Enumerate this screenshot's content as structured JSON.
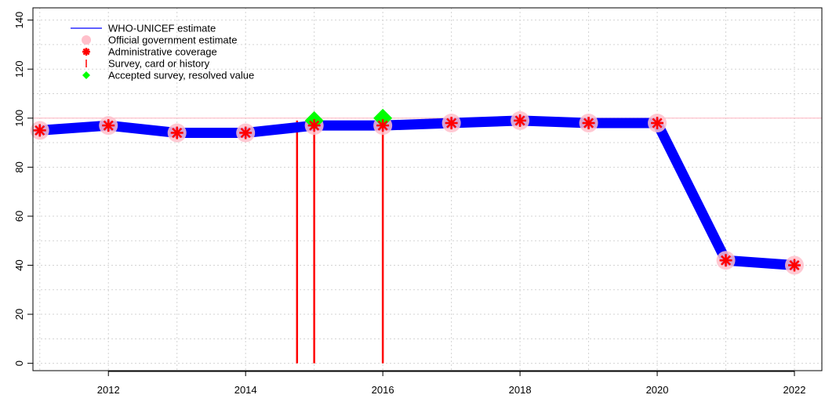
{
  "chart_data": {
    "type": "line",
    "title": "",
    "xlabel": "",
    "ylabel": "",
    "xlim": [
      2010.9,
      2022.4
    ],
    "ylim": [
      -3,
      145
    ],
    "x_ticks": [
      2012,
      2014,
      2016,
      2018,
      2020,
      2022
    ],
    "y_ticks": [
      0,
      20,
      40,
      60,
      80,
      100,
      120,
      140
    ],
    "grid": true,
    "reference_line": 100,
    "legend_position": "top-left",
    "legend": [
      {
        "label": "WHO-UNICEF estimate",
        "symbol": "line",
        "color": "#0000ff"
      },
      {
        "label": "Official government estimate",
        "symbol": "circle",
        "color": "#ffc0cb"
      },
      {
        "label": "Administrative coverage",
        "symbol": "asterisk",
        "color": "#ff0000"
      },
      {
        "label": "Survey, card or history",
        "symbol": "bar",
        "color": "#ff0000"
      },
      {
        "label": "Accepted survey, resolved value",
        "symbol": "diamond",
        "color": "#00ff00"
      }
    ],
    "series": [
      {
        "name": "WHO-UNICEF estimate",
        "color": "#0000ff",
        "x": [
          2011,
          2012,
          2013,
          2014,
          2015,
          2016,
          2017,
          2018,
          2019,
          2020,
          2021,
          2022
        ],
        "y": [
          95,
          97,
          94,
          94,
          97,
          97,
          98,
          99,
          98,
          98,
          42,
          40
        ]
      },
      {
        "name": "Official government estimate",
        "color": "#ffc0cb",
        "x": [
          2011,
          2012,
          2013,
          2014,
          2015,
          2016,
          2017,
          2018,
          2019,
          2020,
          2021,
          2022
        ],
        "y": [
          95,
          97,
          94,
          94,
          97,
          97,
          98,
          99,
          98,
          98,
          42,
          40
        ]
      },
      {
        "name": "Administrative coverage",
        "color": "#ff0000",
        "x": [
          2011,
          2012,
          2013,
          2014,
          2015,
          2016,
          2017,
          2018,
          2019,
          2020,
          2021,
          2022
        ],
        "y": [
          95,
          97,
          94,
          94,
          97,
          97,
          98,
          99,
          98,
          98,
          42,
          40
        ]
      },
      {
        "name": "Survey, card or history",
        "color": "#ff0000",
        "x": [
          2014.75,
          2015,
          2016
        ],
        "y": [
          99,
          96,
          100
        ]
      },
      {
        "name": "Accepted survey, resolved value",
        "color": "#00ff00",
        "x": [
          2015,
          2016
        ],
        "y": [
          99,
          100
        ]
      }
    ]
  }
}
